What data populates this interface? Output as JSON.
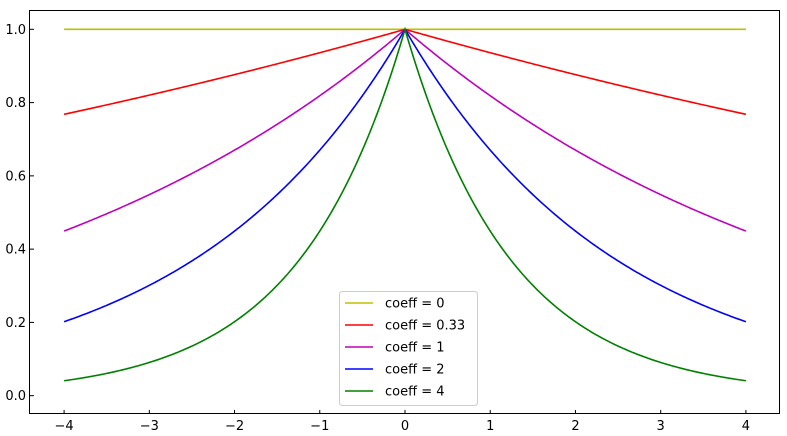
{
  "chart_data": {
    "type": "line",
    "title": "",
    "xlabel": "",
    "ylabel": "",
    "xlim": [
      -4.4,
      4.4
    ],
    "ylim": [
      -0.05,
      1.05
    ],
    "x_ticks": [
      -4,
      -3,
      -2,
      -1,
      0,
      1,
      2,
      3,
      4
    ],
    "x_tick_labels": [
      "−4",
      "−3",
      "−2",
      "−1",
      "0",
      "1",
      "2",
      "3",
      "4"
    ],
    "y_ticks": [
      0.0,
      0.2,
      0.4,
      0.6,
      0.8,
      1.0
    ],
    "y_tick_labels": [
      "0.0",
      "0.2",
      "0.4",
      "0.6",
      "0.8",
      "1.0"
    ],
    "grid": false,
    "legend_position": "lower center",
    "x_range": [
      -4,
      4
    ],
    "series": [
      {
        "name": "coeff = 0",
        "coeff": 0,
        "color": "#bfbf00"
      },
      {
        "name": "coeff = 0.33",
        "coeff": 0.33,
        "color": "#ff0000"
      },
      {
        "name": "coeff = 1",
        "coeff": 1,
        "color": "#bf00bf"
      },
      {
        "name": "coeff = 2",
        "coeff": 2,
        "color": "#0000ff"
      },
      {
        "name": "coeff = 4",
        "coeff": 4,
        "color": "#008000"
      }
    ]
  }
}
